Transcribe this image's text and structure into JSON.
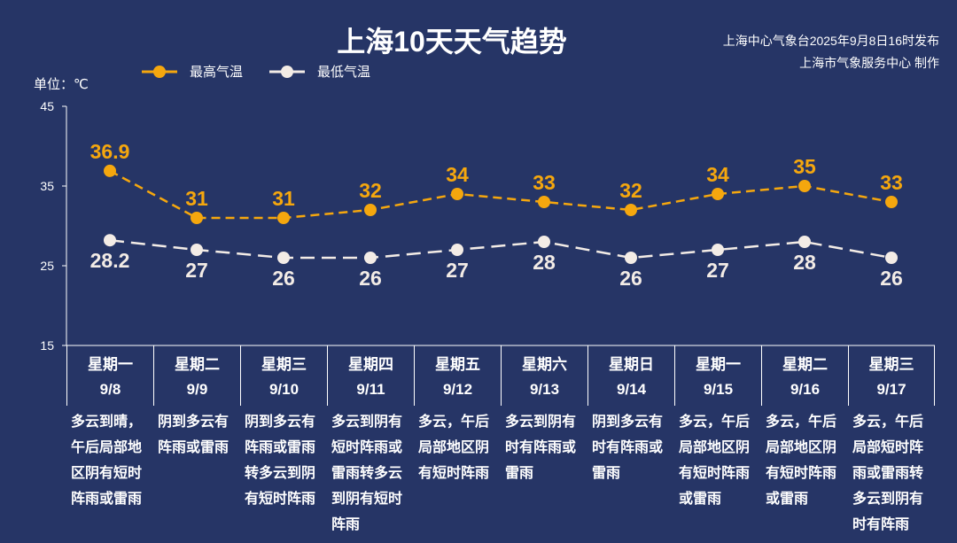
{
  "header": {
    "title": "上海10天天气趋势",
    "source_line1": "上海中心气象台2025年9月8日16时发布",
    "source_line2": "上海市气象服务中心 制作"
  },
  "chart_data": {
    "type": "line",
    "title": "上海10天天气趋势",
    "ylabel": "单位：℃",
    "ylim": [
      15,
      45
    ],
    "yticks": [
      "15",
      "25",
      "35",
      "45"
    ],
    "legend_position": "top-left",
    "categories": [
      "9/8",
      "9/9",
      "9/10",
      "9/11",
      "9/12",
      "9/13",
      "9/14",
      "9/15",
      "9/16",
      "9/17"
    ],
    "weekdays": [
      "星期一",
      "星期二",
      "星期三",
      "星期四",
      "星期五",
      "星期六",
      "星期日",
      "星期一",
      "星期二",
      "星期三"
    ],
    "series": [
      {
        "name": "最高气温",
        "color": "#f5a70e",
        "style": "dashed",
        "values": [
          36.9,
          31,
          31,
          32,
          34,
          33,
          32,
          34,
          35,
          33
        ],
        "labels": [
          "36.9",
          "31",
          "31",
          "32",
          "34",
          "33",
          "32",
          "34",
          "35",
          "33"
        ]
      },
      {
        "name": "最低气温",
        "color": "#f3ece6",
        "style": "dashed",
        "values": [
          28.2,
          27,
          26,
          26,
          27,
          28,
          26,
          27,
          28,
          26
        ],
        "labels": [
          "28.2",
          "27",
          "26",
          "26",
          "27",
          "28",
          "26",
          "27",
          "28",
          "26"
        ]
      }
    ]
  },
  "descriptions": [
    "多云到晴，午后局部地区阴有短时阵雨或雷雨",
    "阴到多云有阵雨或雷雨",
    "阴到多云有阵雨或雷雨转多云到阴有短时阵雨",
    "多云到阴有短时阵雨或雷雨转多云到阴有短时阵雨",
    "多云，午后局部地区阴有短时阵雨",
    "多云到阴有时有阵雨或雷雨",
    "阴到多云有时有阵雨或雷雨",
    "多云，午后局部地区阴有短时阵雨或雷雨",
    "多云，午后局部地区阴有短时阵雨或雷雨",
    "多云，午后局部短时阵雨或雷雨转多云到阴有时有阵雨"
  ]
}
